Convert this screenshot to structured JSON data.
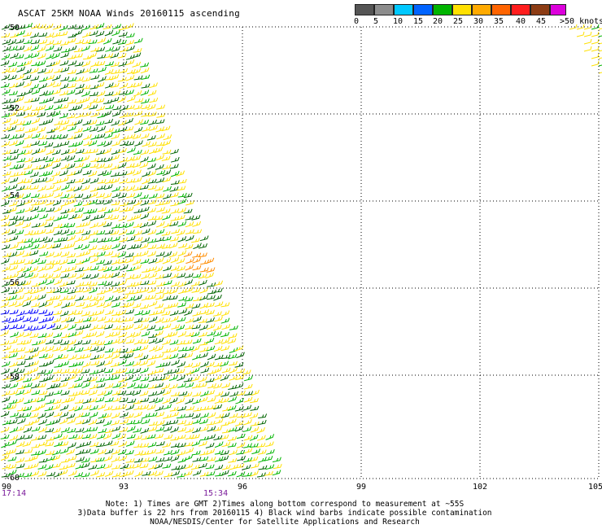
{
  "title": "ASCAT 25KM NOAA Winds 20160115 ascending",
  "legend": {
    "labels": [
      "0",
      "5",
      "10",
      "15",
      "20",
      "25",
      "30",
      "35",
      "40",
      "45",
      ">50 knots"
    ],
    "colors": [
      "#555555",
      "#8c8c8c",
      "#00c8ff",
      "#0064ff",
      "#00b400",
      "#ffe000",
      "#ffaa00",
      "#ff6400",
      "#ff1e1e",
      "#8c3c14",
      "#dc00dc",
      "#5a0096"
    ]
  },
  "map": {
    "lat_labels": [
      "-50",
      "-52",
      "-54",
      "-56",
      "-58",
      "-60"
    ],
    "lon_labels": [
      "90",
      "93",
      "96",
      "99",
      "102",
      "105"
    ],
    "time_labels": [
      {
        "text": "17:14",
        "lon": 90
      },
      {
        "text": "15:34",
        "lon": 95.3
      }
    ],
    "barb_colors": {
      "dark_green": "#006400",
      "green": "#00b400",
      "yellow": "#ffe000",
      "orange": "#ff8c00",
      "blue": "#0000ff",
      "black": "#000000"
    }
  },
  "notes": [
    "Note: 1) Times are GMT 2)Times along bottom correspond to measurement at ~55S",
    "3)Data buffer is 22 hrs from 20160115 4) Black wind barbs indicate possible contamination",
    "NOAA/NESDIS/Center for Satellite Applications and Research"
  ]
}
